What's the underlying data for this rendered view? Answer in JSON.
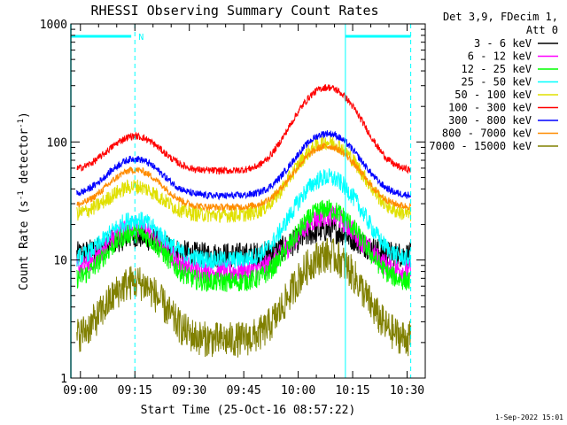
{
  "chart_data": {
    "type": "line",
    "title": "RHESSI Observing Summary Count Rates",
    "xlabel": "Start Time (25-Oct-16 08:57:22)",
    "ylabel_main": "Count Rate (s",
    "ylabel_sup1": "-1",
    "ylabel_mid": " detector",
    "ylabel_sup2": "-1",
    "ylabel_end": ")",
    "y_scale": "log",
    "ylim": [
      1,
      1000
    ],
    "xlim": [
      "08:57:22",
      "10:35:00"
    ],
    "x_ticks": [
      "09:00",
      "09:15",
      "09:30",
      "09:45",
      "10:00",
      "10:15",
      "10:30"
    ],
    "y_ticks": [
      "1",
      "10",
      "100",
      "1000"
    ],
    "legend_header": [
      "Det 3,9, FDecim 1,",
      "Att 0"
    ],
    "legend_position": "right",
    "annotations": {
      "flag_label": "N",
      "timestamp": "1-Sep-2022 15:01"
    },
    "vertical_markers": [
      "09:15",
      "10:13",
      "10:31"
    ],
    "series": [
      {
        "name": "3 - 6 keV",
        "color": "#000000",
        "base": 11,
        "peak1": 16,
        "peak2": 18,
        "noise": 0.25
      },
      {
        "name": "6 - 12 keV",
        "color": "#ff00ff",
        "base": 8,
        "peak1": 19,
        "peak2": 24,
        "noise": 0.22
      },
      {
        "name": "12 - 25 keV",
        "color": "#00ff00",
        "base": 6.5,
        "peak1": 17,
        "peak2": 27,
        "noise": 0.2
      },
      {
        "name": "25 - 50 keV",
        "color": "#00ffff",
        "base": 10,
        "peak1": 22,
        "peak2": 50,
        "noise": 0.18
      },
      {
        "name": "50 - 100 keV",
        "color": "#e0e000",
        "base": 24,
        "peak1": 42,
        "peak2": 100,
        "noise": 0.15
      },
      {
        "name": "100 - 300 keV",
        "color": "#ff0000",
        "base": 57,
        "peak1": 112,
        "peak2": 290,
        "noise": 0.07
      },
      {
        "name": "300 - 800 keV",
        "color": "#0000ff",
        "base": 35,
        "peak1": 72,
        "peak2": 118,
        "noise": 0.07
      },
      {
        "name": "800 - 7000 keV",
        "color": "#ff8c00",
        "base": 28,
        "peak1": 58,
        "peak2": 92,
        "noise": 0.07
      },
      {
        "name": "7000 - 15000 keV",
        "color": "#808000",
        "base": 2.1,
        "peak1": 6.5,
        "peak2": 11,
        "noise": 0.35
      }
    ]
  }
}
